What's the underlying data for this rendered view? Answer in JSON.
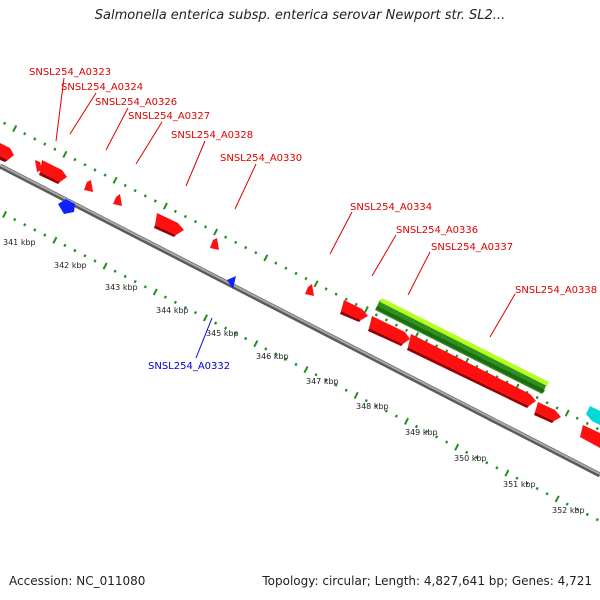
{
  "title": "Salmonella enterica subsp. enterica serovar Newport str. SL2...",
  "footer": {
    "accession": "Accession: NC_011080",
    "topology": "Topology: circular; Length: 4,827,641 bp; Genes: 4,721"
  },
  "colors": {
    "forward_gene": "#ff0000",
    "reverse_gene": "#0000ff",
    "rna_gene": "#00cccc",
    "highlight_light": "#aaff00",
    "highlight_dark": "#2f8f1f",
    "backbone": "#888888",
    "tick": "#1f8f1f",
    "forward_label": "#dd0000",
    "reverse_label": "#0000cc"
  },
  "scale_labels": [
    "341 kbp",
    "342 kbp",
    "343 kbp",
    "344 kbp",
    "345 kbp",
    "346 kbp",
    "347 kbp",
    "348 kbp",
    "349 kbp",
    "350 kbp",
    "351 kbp",
    "352 kbp"
  ],
  "forward_gene_labels": [
    "SNSL254_A0323",
    "SNSL254_A0324",
    "SNSL254_A0326",
    "SNSL254_A0327",
    "SNSL254_A0328",
    "SNSL254_A0330",
    "SNSL254_A0334",
    "SNSL254_A0336",
    "SNSL254_A0337",
    "SNSL254_A0338"
  ],
  "reverse_gene_labels": [
    "SNSL254_A0332"
  ]
}
